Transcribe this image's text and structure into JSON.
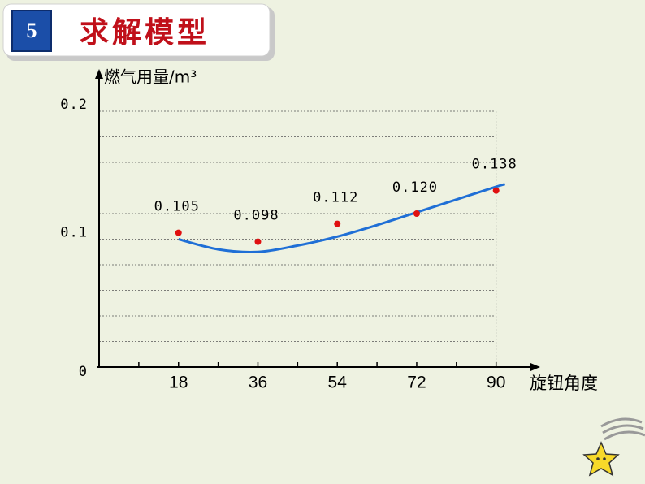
{
  "header": {
    "number": "5",
    "title": "求解模型"
  },
  "chart_data": {
    "type": "scatter",
    "y_label": "燃气用量/m³",
    "x_label": "旋钮角度",
    "x": [
      18,
      36,
      54,
      72,
      90
    ],
    "series": [
      {
        "color": "#e01010",
        "values": [
          0.105,
          0.098,
          0.112,
          0.12,
          0.138
        ],
        "value_labels": [
          "0.105",
          "0.098",
          "0.112",
          "0.120",
          "0.138"
        ]
      }
    ],
    "fit_curve": {
      "color": "#1f6fd6",
      "x": [
        18,
        27,
        36,
        45,
        54,
        63,
        72,
        81,
        90,
        92
      ],
      "values": [
        0.1,
        0.092,
        0.09,
        0.095,
        0.102,
        0.111,
        0.121,
        0.131,
        0.141,
        0.143
      ]
    },
    "xlim": [
      0,
      100
    ],
    "ylim": [
      0,
      0.233
    ],
    "xticks": [
      18,
      36,
      54,
      72,
      90
    ],
    "yticks": [
      0,
      0.1,
      0.2
    ],
    "y_gridlines": [
      0.02,
      0.04,
      0.06,
      0.08,
      0.1,
      0.12,
      0.14,
      0.16,
      0.18,
      0.2
    ]
  }
}
